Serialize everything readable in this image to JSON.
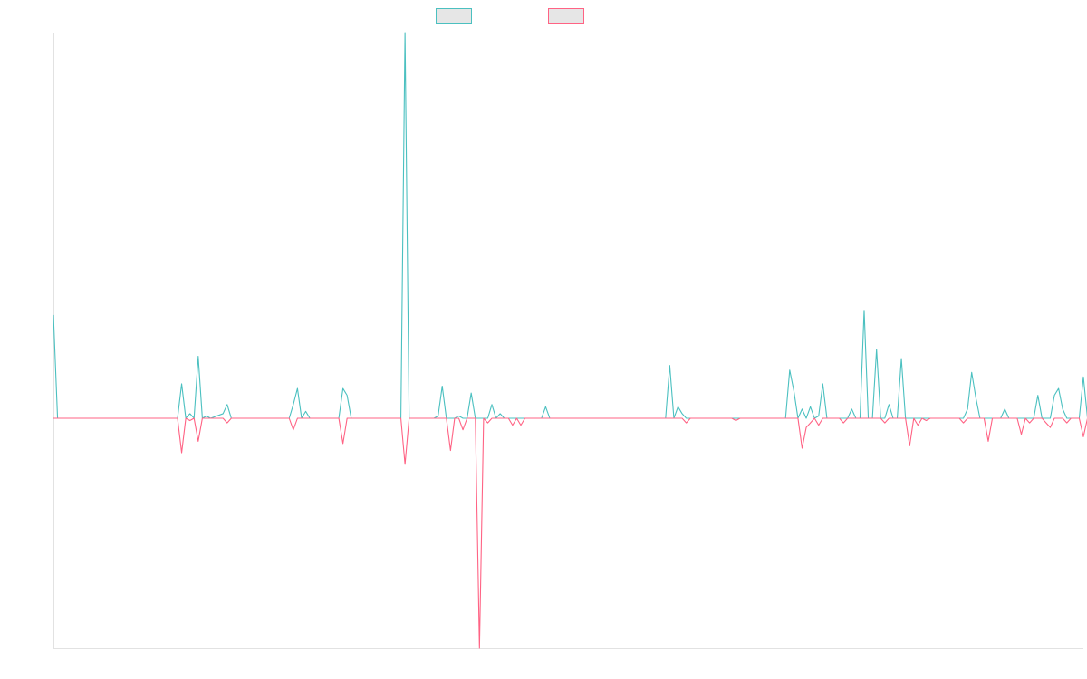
{
  "colors": {
    "series_a": "#4bc0c0",
    "series_b": "#ff6384",
    "legend_fill": "#e6e6e6",
    "axis": "#e2e2e2",
    "background": "#ffffff"
  },
  "chart_data": {
    "type": "line",
    "title": "",
    "xlabel": "",
    "ylabel": "",
    "grid": false,
    "legend_position": "top",
    "x_count": 249,
    "ylim": [
      -1,
      1.68
    ],
    "series": [
      {
        "name": "",
        "color": "#4bc0c0",
        "points": [
          [
            0,
            0.45
          ],
          [
            1,
            0
          ],
          [
            30,
            0
          ],
          [
            31,
            0.15
          ],
          [
            32,
            0
          ],
          [
            33,
            0.02
          ],
          [
            34,
            0
          ],
          [
            35,
            0.27
          ],
          [
            36,
            0
          ],
          [
            37,
            0.01
          ],
          [
            38,
            0
          ],
          [
            41,
            0.02
          ],
          [
            42,
            0.06
          ],
          [
            43,
            0
          ],
          [
            57,
            0
          ],
          [
            58,
            0.06
          ],
          [
            59,
            0.13
          ],
          [
            60,
            0
          ],
          [
            61,
            0.03
          ],
          [
            62,
            0
          ],
          [
            69,
            0
          ],
          [
            70,
            0.13
          ],
          [
            71,
            0.1
          ],
          [
            72,
            0
          ],
          [
            84,
            0
          ],
          [
            85,
            1.68
          ],
          [
            86,
            0
          ],
          [
            92,
            0
          ],
          [
            93,
            0.01
          ],
          [
            94,
            0.14
          ],
          [
            95,
            0
          ],
          [
            97,
            0
          ],
          [
            98,
            0.01
          ],
          [
            99,
            0
          ],
          [
            100,
            0
          ],
          [
            101,
            0.11
          ],
          [
            102,
            0
          ],
          [
            105,
            0
          ],
          [
            106,
            0.06
          ],
          [
            107,
            0
          ],
          [
            108,
            0.02
          ],
          [
            109,
            0
          ],
          [
            118,
            0
          ],
          [
            119,
            0.05
          ],
          [
            120,
            0
          ],
          [
            148,
            0
          ],
          [
            149,
            0.23
          ],
          [
            150,
            0
          ],
          [
            151,
            0.05
          ],
          [
            152,
            0.02
          ],
          [
            153,
            0
          ],
          [
            177,
            0
          ],
          [
            178,
            0.21
          ],
          [
            179,
            0.12
          ],
          [
            180,
            0
          ],
          [
            181,
            0.04
          ],
          [
            182,
            0
          ],
          [
            183,
            0.05
          ],
          [
            184,
            0
          ],
          [
            185,
            0.01
          ],
          [
            186,
            0.15
          ],
          [
            187,
            0
          ],
          [
            192,
            0
          ],
          [
            193,
            0.04
          ],
          [
            194,
            0
          ],
          [
            195,
            0
          ],
          [
            196,
            0.47
          ],
          [
            197,
            0
          ],
          [
            198,
            0
          ],
          [
            199,
            0.3
          ],
          [
            200,
            0
          ],
          [
            201,
            0
          ],
          [
            202,
            0.06
          ],
          [
            203,
            0
          ],
          [
            204,
            0
          ],
          [
            205,
            0.26
          ],
          [
            206,
            0
          ],
          [
            210,
            0
          ],
          [
            220,
            0
          ],
          [
            221,
            0.04
          ],
          [
            222,
            0.2
          ],
          [
            223,
            0.09
          ],
          [
            224,
            0
          ],
          [
            229,
            0
          ],
          [
            230,
            0.04
          ],
          [
            231,
            0
          ],
          [
            237,
            0
          ],
          [
            238,
            0.1
          ],
          [
            239,
            0
          ],
          [
            241,
            0
          ],
          [
            242,
            0.1
          ],
          [
            243,
            0.13
          ],
          [
            244,
            0.04
          ],
          [
            245,
            0
          ],
          [
            248,
            0
          ],
          [
            249,
            0.18
          ],
          [
            250,
            0
          ]
        ]
      },
      {
        "name": "",
        "color": "#ff6384",
        "points": [
          [
            0,
            0
          ],
          [
            30,
            0
          ],
          [
            31,
            -0.15
          ],
          [
            32,
            0
          ],
          [
            33,
            -0.01
          ],
          [
            34,
            0
          ],
          [
            35,
            -0.1
          ],
          [
            36,
            0
          ],
          [
            41,
            0
          ],
          [
            42,
            -0.02
          ],
          [
            43,
            0
          ],
          [
            57,
            0
          ],
          [
            58,
            -0.05
          ],
          [
            59,
            0
          ],
          [
            69,
            0
          ],
          [
            70,
            -0.11
          ],
          [
            71,
            0
          ],
          [
            84,
            0
          ],
          [
            85,
            -0.2
          ],
          [
            86,
            0
          ],
          [
            95,
            0
          ],
          [
            96,
            -0.14
          ],
          [
            97,
            0
          ],
          [
            98,
            0
          ],
          [
            99,
            -0.05
          ],
          [
            100,
            0
          ],
          [
            102,
            0
          ],
          [
            103,
            -1
          ],
          [
            104,
            0
          ],
          [
            105,
            -0.02
          ],
          [
            106,
            0
          ],
          [
            110,
            0
          ],
          [
            111,
            -0.03
          ],
          [
            112,
            0
          ],
          [
            113,
            -0.03
          ],
          [
            114,
            0
          ],
          [
            152,
            0
          ],
          [
            153,
            -0.02
          ],
          [
            154,
            0
          ],
          [
            164,
            0
          ],
          [
            165,
            -0.01
          ],
          [
            166,
            0
          ],
          [
            180,
            0
          ],
          [
            181,
            -0.13
          ],
          [
            182,
            -0.04
          ],
          [
            183,
            -0.02
          ],
          [
            184,
            0
          ],
          [
            185,
            -0.03
          ],
          [
            186,
            0
          ],
          [
            190,
            0
          ],
          [
            191,
            -0.02
          ],
          [
            192,
            0
          ],
          [
            200,
            0
          ],
          [
            201,
            -0.02
          ],
          [
            202,
            0
          ],
          [
            206,
            0
          ],
          [
            207,
            -0.12
          ],
          [
            208,
            0
          ],
          [
            209,
            -0.03
          ],
          [
            210,
            0
          ],
          [
            211,
            -0.01
          ],
          [
            212,
            0
          ],
          [
            219,
            0
          ],
          [
            220,
            -0.02
          ],
          [
            221,
            0
          ],
          [
            225,
            0
          ],
          [
            226,
            -0.1
          ],
          [
            227,
            0
          ],
          [
            233,
            0
          ],
          [
            234,
            -0.07
          ],
          [
            235,
            0
          ],
          [
            236,
            -0.02
          ],
          [
            237,
            0
          ],
          [
            239,
            0
          ],
          [
            240,
            -0.02
          ],
          [
            241,
            -0.04
          ],
          [
            242,
            0
          ],
          [
            244,
            0
          ],
          [
            245,
            -0.02
          ],
          [
            246,
            0
          ],
          [
            248,
            0
          ],
          [
            249,
            -0.08
          ],
          [
            250,
            0
          ],
          [
            251,
            -0.02
          ],
          [
            252,
            0
          ]
        ]
      }
    ]
  }
}
